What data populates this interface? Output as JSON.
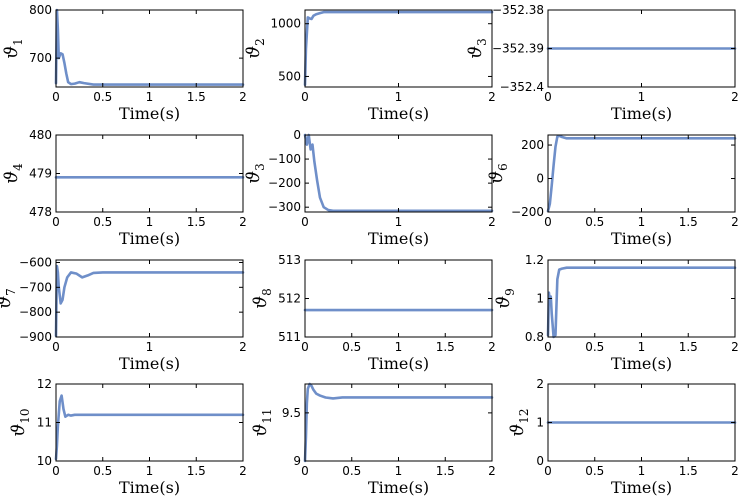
{
  "chart_data": [
    {
      "type": "line",
      "ylabel": "ϑ1",
      "xlabel": "Time(s)",
      "xlim": [
        0,
        2
      ],
      "ylim": [
        640,
        800
      ],
      "xticks": [
        "0",
        "0.5",
        "1",
        "1.5",
        "2"
      ],
      "yticks": [
        700,
        800
      ],
      "ytick_labels": [
        "700",
        "800"
      ],
      "grid": false,
      "color": "#6f8fc9",
      "series": [
        {
          "x": [
            0,
            0.01,
            0.02,
            0.03,
            0.05,
            0.07,
            0.09,
            0.11,
            0.13,
            0.16,
            0.2,
            0.25,
            0.3,
            0.4,
            0.6,
            1.0,
            1.5,
            2.0
          ],
          "y": [
            648,
            800,
            760,
            700,
            710,
            708,
            690,
            668,
            650,
            646,
            647,
            650,
            648,
            645,
            645,
            645,
            645,
            645
          ]
        }
      ]
    },
    {
      "type": "line",
      "ylabel": "ϑ2",
      "xlabel": "Time(s)",
      "xlim": [
        0,
        2
      ],
      "ylim": [
        400,
        1130
      ],
      "xticks": [
        "0",
        "1",
        "2"
      ],
      "yticks": [
        500,
        1000
      ],
      "ytick_labels": [
        "500",
        "1000"
      ],
      "grid": false,
      "color": "#6f8fc9",
      "series": [
        {
          "x": [
            0,
            0.01,
            0.03,
            0.05,
            0.07,
            0.09,
            0.12,
            0.16,
            0.2,
            0.3,
            0.5,
            1.0,
            1.5,
            2.0
          ],
          "y": [
            420,
            760,
            1060,
            1050,
            1045,
            1075,
            1090,
            1100,
            1110,
            1110,
            1110,
            1110,
            1110,
            1110
          ]
        }
      ]
    },
    {
      "type": "line",
      "ylabel": "ϑ3",
      "xlabel": "Time(s)",
      "xlim": [
        0,
        2
      ],
      "ylim": [
        -352.4,
        -352.38
      ],
      "xticks": [
        "0",
        "1",
        "2"
      ],
      "yticks": [
        -352.4,
        -352.39,
        -352.38
      ],
      "ytick_labels": [
        "−352.4",
        "−352.39",
        "−352.38"
      ],
      "grid": false,
      "color": "#6f8fc9",
      "series": [
        {
          "x": [
            0,
            2
          ],
          "y": [
            -352.39,
            -352.39
          ]
        }
      ]
    },
    {
      "type": "line",
      "ylabel": "ϑ4",
      "xlabel": "Time(s)",
      "xlim": [
        0,
        2
      ],
      "ylim": [
        478,
        480
      ],
      "xticks": [
        "0",
        "0.5",
        "1",
        "1.5",
        "2"
      ],
      "yticks": [
        478,
        479,
        480
      ],
      "ytick_labels": [
        "478",
        "479",
        "480"
      ],
      "grid": false,
      "color": "#6f8fc9",
      "series": [
        {
          "x": [
            0,
            2
          ],
          "y": [
            478.9,
            478.9
          ]
        }
      ]
    },
    {
      "type": "line",
      "ylabel": "ϑ3",
      "xlabel": "Time(s)",
      "xlim": [
        0,
        2
      ],
      "ylim": [
        -320,
        0
      ],
      "xticks": [
        "0",
        "1",
        "2"
      ],
      "yticks": [
        -300,
        -200,
        -100,
        0
      ],
      "ytick_labels": [
        "−300",
        "−200",
        "−100",
        "0"
      ],
      "grid": false,
      "color": "#6f8fc9",
      "series": [
        {
          "x": [
            0,
            0.02,
            0.04,
            0.06,
            0.08,
            0.1,
            0.13,
            0.16,
            0.2,
            0.25,
            0.3,
            0.4,
            0.6,
            1.0,
            1.5,
            2.0
          ],
          "y": [
            0,
            -40,
            0,
            -60,
            -40,
            -110,
            -190,
            -260,
            -300,
            -312,
            -315,
            -315,
            -315,
            -315,
            -315,
            -315
          ]
        }
      ]
    },
    {
      "type": "line",
      "ylabel": "ϑ6",
      "xlabel": "Time(s)",
      "xlim": [
        0,
        2
      ],
      "ylim": [
        -200,
        260
      ],
      "xticks": [
        "0",
        "0.5",
        "1",
        "1.5",
        "2"
      ],
      "yticks": [
        -200,
        0,
        200
      ],
      "ytick_labels": [
        "−200",
        "0",
        "200"
      ],
      "grid": false,
      "color": "#6f8fc9",
      "series": [
        {
          "x": [
            0,
            0.02,
            0.04,
            0.06,
            0.08,
            0.1,
            0.12,
            0.15,
            0.2,
            0.3,
            0.5,
            1.0,
            1.5,
            2.0
          ],
          "y": [
            -195,
            -150,
            -40,
            80,
            190,
            250,
            255,
            248,
            240,
            240,
            240,
            240,
            240,
            240
          ]
        }
      ]
    },
    {
      "type": "line",
      "ylabel": "ϑ7",
      "xlabel": "Time(s)",
      "xlim": [
        0,
        2
      ],
      "ylim": [
        -900,
        -590
      ],
      "xticks": [
        "0",
        "1",
        "2"
      ],
      "yticks": [
        -900,
        -800,
        -700,
        -600
      ],
      "ytick_labels": [
        "−900",
        "−800",
        "−700",
        "−600"
      ],
      "grid": false,
      "color": "#6f8fc9",
      "series": [
        {
          "x": [
            0,
            0.01,
            0.02,
            0.03,
            0.05,
            0.07,
            0.09,
            0.12,
            0.16,
            0.22,
            0.28,
            0.34,
            0.4,
            0.5,
            0.7,
            1.0,
            1.5,
            2.0
          ],
          "y": [
            -895,
            -615,
            -640,
            -700,
            -765,
            -750,
            -700,
            -660,
            -640,
            -645,
            -660,
            -652,
            -642,
            -640,
            -640,
            -640,
            -640,
            -640
          ]
        }
      ]
    },
    {
      "type": "line",
      "ylabel": "ϑ8",
      "xlabel": "Time(s)",
      "xlim": [
        0,
        2
      ],
      "ylim": [
        511,
        513
      ],
      "xticks": [
        "0",
        "0.5",
        "1",
        "1.5",
        "2"
      ],
      "yticks": [
        511,
        512,
        513
      ],
      "ytick_labels": [
        "511",
        "512",
        "513"
      ],
      "grid": false,
      "color": "#6f8fc9",
      "series": [
        {
          "x": [
            0,
            2
          ],
          "y": [
            511.7,
            511.7
          ]
        }
      ]
    },
    {
      "type": "line",
      "ylabel": "ϑ9",
      "xlabel": "Time(s)",
      "xlim": [
        0,
        2
      ],
      "ylim": [
        0.8,
        1.2
      ],
      "xticks": [
        "0",
        "0.5",
        "1",
        "1.5",
        "2"
      ],
      "yticks": [
        0.8,
        1,
        1.2
      ],
      "ytick_labels": [
        "0.8",
        "1",
        "1.2"
      ],
      "grid": false,
      "color": "#6f8fc9",
      "series": [
        {
          "x": [
            0,
            0.01,
            0.02,
            0.03,
            0.04,
            0.06,
            0.08,
            0.1,
            0.12,
            0.15,
            0.2,
            0.3,
            0.5,
            1.0,
            1.5,
            2.0
          ],
          "y": [
            0.81,
            1.03,
            0.98,
            1.01,
            0.92,
            0.8,
            0.81,
            1.1,
            1.15,
            1.155,
            1.16,
            1.16,
            1.16,
            1.16,
            1.16,
            1.16
          ]
        }
      ]
    },
    {
      "type": "line",
      "ylabel": "ϑ10",
      "xlabel": "Time(s)",
      "xlim": [
        0,
        2
      ],
      "ylim": [
        10,
        12
      ],
      "xticks": [
        "0",
        "0.5",
        "1",
        "1.5",
        "2"
      ],
      "yticks": [
        10,
        11,
        12
      ],
      "ytick_labels": [
        "10",
        "11",
        "12"
      ],
      "grid": false,
      "color": "#6f8fc9",
      "series": [
        {
          "x": [
            0,
            0.01,
            0.02,
            0.04,
            0.06,
            0.08,
            0.1,
            0.13,
            0.16,
            0.2,
            0.3,
            0.5,
            1.0,
            1.5,
            2.0
          ],
          "y": [
            10.05,
            10.4,
            10.9,
            11.55,
            11.7,
            11.35,
            11.15,
            11.2,
            11.18,
            11.2,
            11.2,
            11.2,
            11.2,
            11.2,
            11.2
          ]
        }
      ]
    },
    {
      "type": "line",
      "ylabel": "ϑ11",
      "xlabel": "Time(s)",
      "xlim": [
        0,
        2
      ],
      "ylim": [
        9,
        9.8
      ],
      "xticks": [
        "0",
        "0.5",
        "1",
        "1.5",
        "2"
      ],
      "yticks": [
        9,
        9.5
      ],
      "ytick_labels": [
        "9",
        "9.5"
      ],
      "grid": false,
      "color": "#6f8fc9",
      "series": [
        {
          "x": [
            0,
            0.01,
            0.02,
            0.03,
            0.05,
            0.07,
            0.09,
            0.12,
            0.16,
            0.22,
            0.3,
            0.4,
            0.5,
            1.0,
            1.5,
            2.0
          ],
          "y": [
            9.0,
            9.25,
            9.6,
            9.75,
            9.8,
            9.78,
            9.74,
            9.7,
            9.68,
            9.66,
            9.65,
            9.66,
            9.66,
            9.66,
            9.66,
            9.66
          ]
        }
      ]
    },
    {
      "type": "line",
      "ylabel": "ϑ12",
      "xlabel": "Time(s)",
      "xlim": [
        0,
        2
      ],
      "ylim": [
        0,
        2
      ],
      "xticks": [
        "0",
        "0.5",
        "1",
        "1.5",
        "2"
      ],
      "yticks": [
        0,
        1,
        2
      ],
      "ytick_labels": [
        "0",
        "1",
        "2"
      ],
      "grid": false,
      "color": "#6f8fc9",
      "series": [
        {
          "x": [
            0,
            2
          ],
          "y": [
            1,
            1
          ]
        }
      ]
    }
  ]
}
